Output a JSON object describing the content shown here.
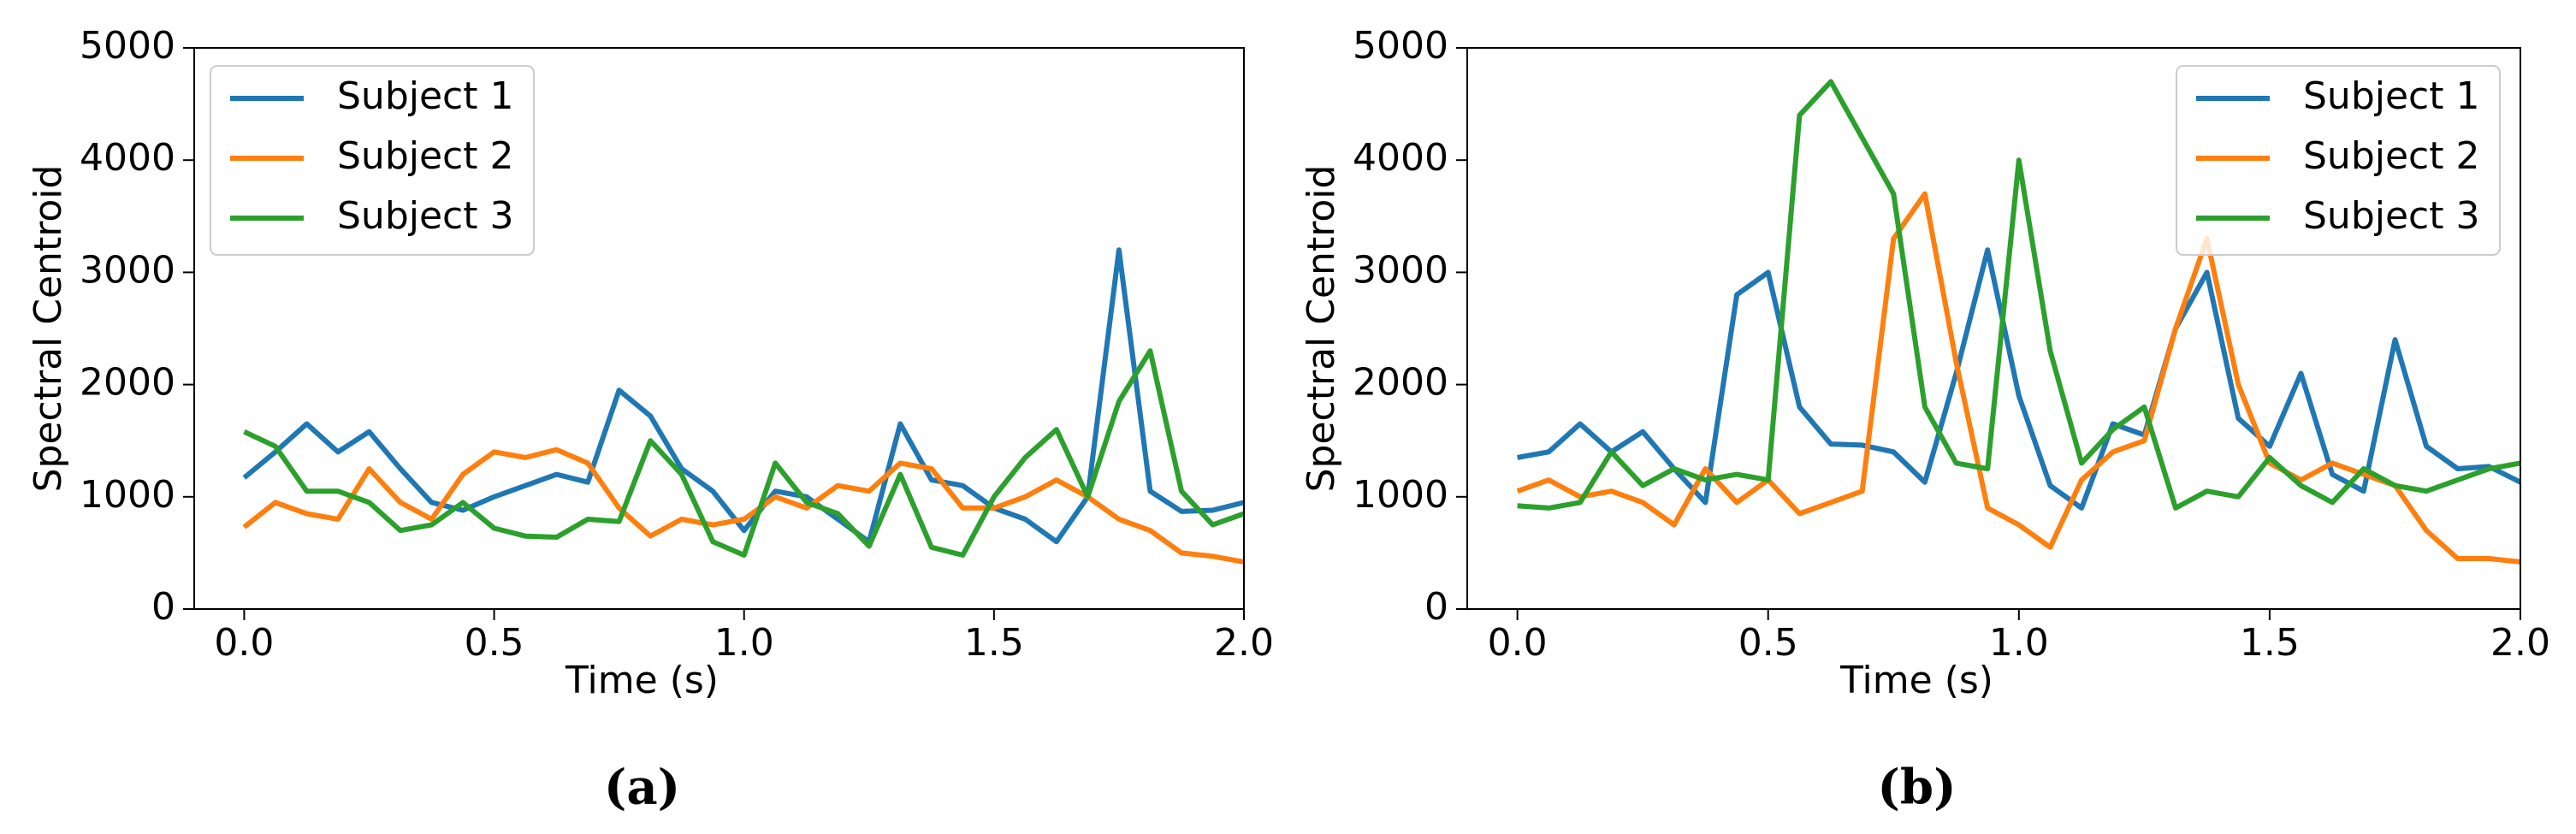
{
  "chart_data": [
    {
      "type": "line",
      "label": "(a)",
      "xlabel": "Time (s)",
      "ylabel": "Spectral Centroid",
      "x": [
        0,
        0.0625,
        0.125,
        0.1875,
        0.25,
        0.3125,
        0.375,
        0.4375,
        0.5,
        0.5625,
        0.625,
        0.6875,
        0.75,
        0.8125,
        0.875,
        0.9375,
        1.0,
        1.0625,
        1.125,
        1.1875,
        1.25,
        1.3125,
        1.375,
        1.4375,
        1.5,
        1.5625,
        1.625,
        1.6875,
        1.75,
        1.8125,
        1.875,
        1.9375,
        2.0
      ],
      "series": [
        {
          "name": "Subject 1",
          "color": "#1f77b4",
          "values": [
            1170,
            1400,
            1650,
            1400,
            1580,
            1250,
            950,
            880,
            1000,
            1100,
            1200,
            1130,
            1950,
            1720,
            1250,
            1050,
            700,
            1050,
            1000,
            800,
            600,
            1650,
            1150,
            1100,
            900,
            800,
            600,
            1000,
            3200,
            1050,
            870,
            880,
            950
          ]
        },
        {
          "name": "Subject 2",
          "color": "#ff7f0e",
          "values": [
            730,
            950,
            850,
            800,
            1250,
            950,
            800,
            1200,
            1400,
            1350,
            1420,
            1300,
            900,
            650,
            800,
            750,
            800,
            1000,
            900,
            1100,
            1050,
            1300,
            1250,
            900,
            900,
            1000,
            1150,
            1000,
            800,
            700,
            500,
            470,
            420
          ]
        },
        {
          "name": "Subject 3",
          "color": "#2ca02c",
          "values": [
            1580,
            1450,
            1050,
            1050,
            950,
            700,
            750,
            950,
            720,
            650,
            640,
            800,
            780,
            1500,
            1200,
            600,
            480,
            1300,
            950,
            850,
            560,
            1200,
            550,
            480,
            1000,
            1350,
            1600,
            1000,
            1850,
            2300,
            1050,
            750,
            850
          ]
        }
      ],
      "xlim": [
        -0.1,
        2.0
      ],
      "ylim": [
        0,
        5000
      ],
      "xticks": [
        {
          "value": 0,
          "label": "0.0"
        },
        {
          "value": 0.5,
          "label": "0.5"
        },
        {
          "value": 1,
          "label": "1.0"
        },
        {
          "value": 1.5,
          "label": "1.5"
        },
        {
          "value": 2,
          "label": "2.0"
        }
      ],
      "yticks": [
        0,
        1000,
        2000,
        3000,
        4000,
        5000
      ],
      "legend": "upper left"
    },
    {
      "type": "line",
      "label": "(b)",
      "xlabel": "Time (s)",
      "ylabel": "Spectral Centroid",
      "x": [
        0,
        0.0625,
        0.125,
        0.1875,
        0.25,
        0.3125,
        0.375,
        0.4375,
        0.5,
        0.5625,
        0.625,
        0.6875,
        0.75,
        0.8125,
        0.875,
        0.9375,
        1.0,
        1.0625,
        1.125,
        1.1875,
        1.25,
        1.3125,
        1.375,
        1.4375,
        1.5,
        1.5625,
        1.625,
        1.6875,
        1.75,
        1.8125,
        1.875,
        1.9375,
        2.0
      ],
      "series": [
        {
          "name": "Subject 1",
          "color": "#1f77b4",
          "values": [
            1350,
            1400,
            1650,
            1400,
            1580,
            1250,
            950,
            2800,
            3000,
            1800,
            1470,
            1460,
            1400,
            1130,
            2100,
            3200,
            1900,
            1100,
            900,
            1650,
            1550,
            2500,
            3000,
            1700,
            1450,
            2100,
            1200,
            1050,
            2400,
            1450,
            1250,
            1270,
            1130
          ]
        },
        {
          "name": "Subject 2",
          "color": "#ff7f0e",
          "values": [
            1050,
            1150,
            1000,
            1050,
            950,
            750,
            1250,
            950,
            1150,
            850,
            950,
            1050,
            3300,
            3700,
            2200,
            900,
            750,
            550,
            1150,
            1400,
            1500,
            2500,
            3300,
            2000,
            1300,
            1150,
            1300,
            1200,
            1100,
            700,
            450,
            450,
            420
          ]
        },
        {
          "name": "Subject 3",
          "color": "#2ca02c",
          "values": [
            920,
            900,
            950,
            1400,
            1100,
            1250,
            1150,
            1200,
            1150,
            4400,
            4700,
            4200,
            3700,
            1800,
            1300,
            1250,
            4000,
            2300,
            1300,
            1600,
            1800,
            900,
            1050,
            1000,
            1350,
            1100,
            950,
            1250,
            1100,
            1050,
            1150,
            1250,
            1300
          ]
        }
      ],
      "xlim": [
        -0.1,
        2.0
      ],
      "ylim": [
        0,
        5000
      ],
      "xticks": [
        {
          "value": 0,
          "label": "0.0"
        },
        {
          "value": 0.5,
          "label": "0.5"
        },
        {
          "value": 1,
          "label": "1.0"
        },
        {
          "value": 1.5,
          "label": "1.5"
        },
        {
          "value": 2,
          "label": "2.0"
        }
      ],
      "yticks": [
        0,
        1000,
        2000,
        3000,
        4000,
        5000
      ],
      "legend": "upper right"
    }
  ]
}
